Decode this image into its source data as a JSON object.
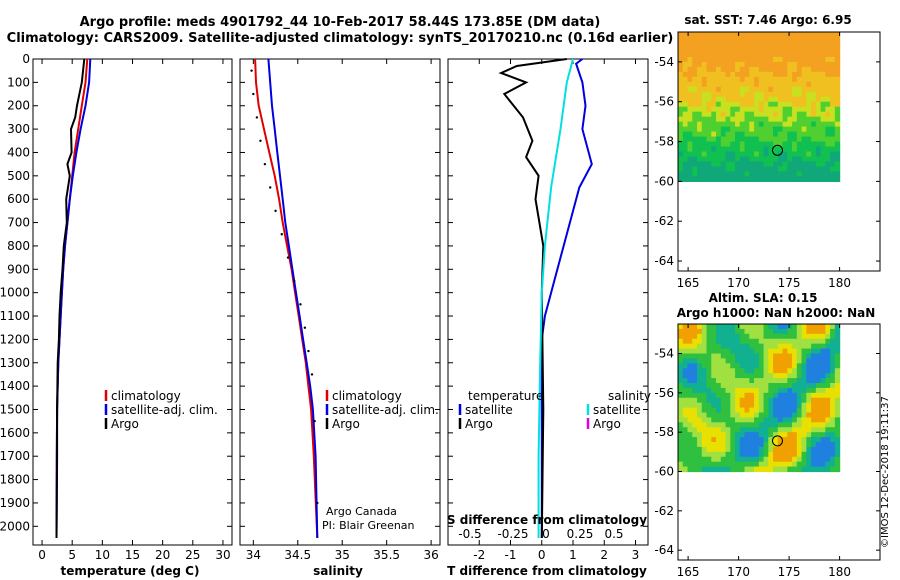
{
  "title_line1": "Argo profile: meds 4901792_44 10-Feb-2017 58.44S 173.85E (DM data)",
  "title_line2": "Climatology: CARS2009. Satellite-adjusted climatology: synTS_20170210.nc (0.16d earlier)",
  "colors": {
    "climatology": "#e00000",
    "satellite": "#0000e0",
    "argo": "#000000",
    "salinity_sat": "#00e0e0",
    "salinity_argo": "#e000e0"
  },
  "credit_line1": "Argo Canada",
  "credit_line2": "PI: Blair Greenan",
  "timestamp": "©IMOS 12-Dec-2018 19:11:37",
  "depth_ticks": [
    "0",
    "100",
    "200",
    "300",
    "400",
    "500",
    "600",
    "700",
    "800",
    "900",
    "1000",
    "1100",
    "1200",
    "1300",
    "1400",
    "1500",
    "1600",
    "1700",
    "1800",
    "1900",
    "2000"
  ],
  "chart_data": [
    {
      "type": "line",
      "id": "temperature",
      "xlabel": "temperature (deg C)",
      "xlim": [
        -1.5,
        31.5
      ],
      "ylim": [
        2080,
        0
      ],
      "xticks": [
        "0",
        "5",
        "10",
        "15",
        "20",
        "25",
        "30"
      ],
      "legend": [
        "climatology",
        "satellite-adj. clim.",
        "Argo"
      ],
      "legend_position": "center-bottom",
      "series": [
        {
          "name": "climatology",
          "color": "#e00000",
          "x": [
            7.5,
            7.2,
            6.6,
            6.0,
            5.4,
            5.0,
            4.6,
            4.2,
            3.8,
            3.5,
            3.3,
            3.1,
            2.9,
            2.7,
            2.6,
            2.5,
            2.45,
            2.4
          ],
          "y": [
            0,
            100,
            200,
            300,
            400,
            500,
            600,
            700,
            800,
            900,
            1000,
            1100,
            1200,
            1300,
            1400,
            1500,
            1700,
            2050
          ]
        },
        {
          "name": "satellite-adj. clim.",
          "color": "#0000e0",
          "x": [
            8.0,
            7.8,
            7.2,
            6.4,
            5.7,
            5.1,
            4.6,
            4.2,
            3.8,
            3.5,
            3.3,
            3.1,
            2.9,
            2.7,
            2.6,
            2.5,
            2.45,
            2.4
          ],
          "y": [
            0,
            100,
            200,
            300,
            400,
            500,
            600,
            700,
            800,
            900,
            1000,
            1100,
            1200,
            1300,
            1400,
            1500,
            1700,
            2050
          ]
        },
        {
          "name": "Argo",
          "color": "#000000",
          "x": [
            7.0,
            6.6,
            5.8,
            5.5,
            4.8,
            4.9,
            4.2,
            4.6,
            4.0,
            4.1,
            3.6,
            3.4,
            3.1,
            2.9,
            2.8,
            2.6,
            2.5,
            2.5,
            2.45,
            2.4
          ],
          "y": [
            0,
            100,
            200,
            250,
            300,
            400,
            450,
            500,
            600,
            700,
            800,
            900,
            1000,
            1100,
            1200,
            1300,
            1500,
            1700,
            1900,
            2050
          ]
        }
      ]
    },
    {
      "type": "scatter",
      "id": "salinity",
      "xlabel": "salinity",
      "xlim": [
        33.85,
        36.1
      ],
      "ylim": [
        2080,
        0
      ],
      "xticks": [
        "34",
        "34.5",
        "35",
        "35.5",
        "36"
      ],
      "legend": [
        "climatology",
        "satellite-adj. clim.",
        "Argo"
      ],
      "legend_position": "center-bottom",
      "series": [
        {
          "name": "climatology",
          "color": "#e00000",
          "x": [
            34.02,
            34.03,
            34.06,
            34.12,
            34.18,
            34.24,
            34.29,
            34.33,
            34.38,
            34.43,
            34.47,
            34.51,
            34.55,
            34.59,
            34.62,
            34.65,
            34.68,
            34.72
          ],
          "y": [
            0,
            100,
            200,
            300,
            400,
            500,
            600,
            700,
            800,
            900,
            1000,
            1100,
            1200,
            1300,
            1400,
            1500,
            1700,
            2050
          ]
        },
        {
          "name": "satellite-adj. clim.",
          "color": "#0000e0",
          "x": [
            34.17,
            34.19,
            34.21,
            34.24,
            34.27,
            34.3,
            34.33,
            34.36,
            34.4,
            34.44,
            34.48,
            34.52,
            34.56,
            34.6,
            34.64,
            34.67,
            34.7,
            34.72
          ],
          "y": [
            0,
            100,
            200,
            300,
            400,
            500,
            600,
            700,
            800,
            900,
            1000,
            1100,
            1200,
            1300,
            1400,
            1500,
            1700,
            2050
          ]
        },
        {
          "name": "Argo",
          "color": "#000000",
          "x": [
            33.98,
            34.0,
            34.04,
            34.08,
            34.13,
            34.19,
            34.25,
            34.32,
            34.39,
            34.46,
            34.53,
            34.58,
            34.62,
            34.66,
            34.69,
            34.72
          ],
          "y": [
            50,
            150,
            250,
            350,
            450,
            550,
            650,
            750,
            850,
            950,
            1050,
            1150,
            1250,
            1350,
            1550,
            1900
          ]
        }
      ]
    },
    {
      "type": "line",
      "id": "difference",
      "xlabel": "T difference from climatology",
      "secondary_xlabel": "S difference from climatology",
      "xlim": [
        -3,
        3.4
      ],
      "ylim": [
        2080,
        0
      ],
      "xticks": [
        "-2",
        "-1",
        "0",
        "1",
        "2",
        "3"
      ],
      "secondary_xticks": [
        "-0.5",
        "-0.25",
        "0",
        "0.25",
        "0.5"
      ],
      "legend": [
        "temperature",
        "satellite",
        "Argo",
        "salinity",
        "satellite",
        "Argo"
      ],
      "legend_position": "center-bottom",
      "series": [
        {
          "name": "temperature satellite",
          "color": "#0000e0",
          "x": [
            1.3,
            1.1,
            1.3,
            1.4,
            1.3,
            1.6,
            1.2,
            0.9,
            0.6,
            0.3,
            0.1,
            0.0,
            0.0
          ],
          "y": [
            0,
            20,
            100,
            200,
            300,
            450,
            550,
            700,
            850,
            1000,
            1100,
            1200,
            2050
          ]
        },
        {
          "name": "temperature Argo",
          "color": "#000000",
          "x": [
            0.8,
            -0.8,
            -1.3,
            -0.5,
            -1.2,
            -0.6,
            -0.3,
            -0.5,
            -0.1,
            -0.2,
            0.05,
            0.0,
            0.05,
            0.0
          ],
          "y": [
            0,
            30,
            60,
            100,
            150,
            250,
            350,
            420,
            500,
            600,
            800,
            1000,
            1500,
            2050
          ]
        },
        {
          "name": "salinity satellite",
          "color": "#00e0e0",
          "x": [
            1.0,
            0.8,
            0.6,
            0.3,
            0.1,
            0.0,
            -0.05,
            -0.1,
            -0.1
          ],
          "y": [
            0,
            100,
            300,
            550,
            800,
            1000,
            1300,
            1700,
            2050
          ]
        },
        {
          "name": "salinity Argo",
          "color": "#e000e0",
          "x": [],
          "y": []
        }
      ]
    },
    {
      "type": "heatmap",
      "id": "sst_map",
      "title": "sat. SST: 7.46 Argo: 6.95",
      "xlim": [
        164,
        184
      ],
      "ylim": [
        -64.5,
        -52.5
      ],
      "xticks": [
        "165",
        "170",
        "175",
        "180"
      ],
      "yticks": [
        "-54",
        "-56",
        "-58",
        "-60",
        "-62",
        "-64"
      ],
      "marker": {
        "lon": 173.85,
        "lat": -58.44
      }
    },
    {
      "type": "heatmap",
      "id": "sla_map",
      "title_line1": "Altim. SLA: 0.15",
      "title_line2": "Argo h1000: NaN h2000: NaN",
      "xlim": [
        164,
        184
      ],
      "ylim": [
        -64.5,
        -52.5
      ],
      "xticks": [
        "165",
        "170",
        "175",
        "180"
      ],
      "yticks": [
        "-54",
        "-56",
        "-58",
        "-60",
        "-62",
        "-64"
      ],
      "marker": {
        "lon": 173.85,
        "lat": -58.44
      }
    }
  ]
}
